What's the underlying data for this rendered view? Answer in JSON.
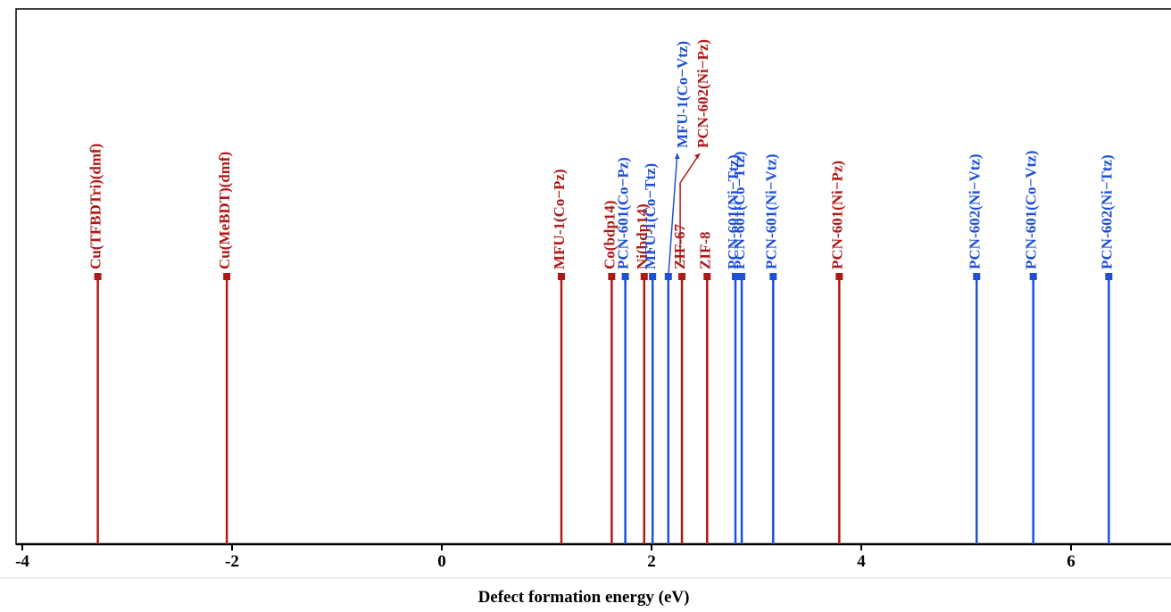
{
  "chart_data": {
    "type": "stem",
    "title": "",
    "xlabel": "Defect formation energy (eV)",
    "ylabel": "",
    "xlim": [
      -4,
      7
    ],
    "x_ticks": [
      -4,
      -2,
      0,
      2,
      4,
      6
    ],
    "x_tick_labels": [
      "-4",
      "-2",
      "0",
      "2",
      "4",
      "6"
    ],
    "grid": false,
    "colors": {
      "red": "#b01818",
      "blue": "#1f4fd8"
    },
    "points": [
      {
        "label": "Cu(TFBDTri)(dmf)",
        "x": -3.28,
        "color": "red"
      },
      {
        "label": "Cu(MeBDT)(dmf)",
        "x": -2.05,
        "color": "red"
      },
      {
        "label": "MFU-1(Co−Pz)",
        "x": 1.14,
        "color": "red"
      },
      {
        "label": "Co(bdp14)",
        "x": 1.62,
        "color": "red"
      },
      {
        "label": "PCN-601(Co−Pz)",
        "x": 1.75,
        "color": "blue"
      },
      {
        "label": "Ni(bdp14)",
        "x": 1.93,
        "color": "red"
      },
      {
        "label": "MFU-1(Co−Ttz)",
        "x": 2.01,
        "color": "blue"
      },
      {
        "label": "MFU-1(Co−Vtz)",
        "x": 2.16,
        "color": "blue"
      },
      {
        "label": "ZIF-67",
        "x": 2.29,
        "color": "red"
      },
      {
        "label": "PCN-602(Ni−Pz)",
        "x": 2.29,
        "color": "red"
      },
      {
        "label": "ZIF-8",
        "x": 2.53,
        "color": "red"
      },
      {
        "label": "PCN-601(Ni−Ttz)",
        "x": 2.8,
        "color": "blue"
      },
      {
        "label": "PCN-601(Co−Ttz)",
        "x": 2.86,
        "color": "blue"
      },
      {
        "label": "PCN-601(Ni−Vtz)",
        "x": 3.16,
        "color": "blue"
      },
      {
        "label": "PCN-601(Ni−Pz)",
        "x": 3.79,
        "color": "red"
      },
      {
        "label": "PCN-602(Ni−Vtz)",
        "x": 5.1,
        "color": "blue"
      },
      {
        "label": "PCN-601(Co−Vtz)",
        "x": 5.64,
        "color": "blue"
      },
      {
        "label": "PCN-602(Ni−Ttz)",
        "x": 6.36,
        "color": "blue"
      }
    ]
  }
}
